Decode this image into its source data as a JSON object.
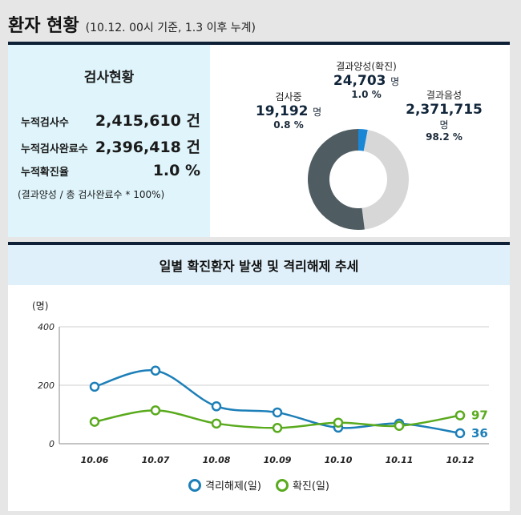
{
  "header": {
    "title": "환자 현황",
    "subtitle": "(10.12. 00시 기준, 1.3 이후 누계)"
  },
  "test_status": {
    "title": "검사현황",
    "rows": [
      {
        "label": "누적검사수",
        "value": "2,415,610 건"
      },
      {
        "label": "누적검사완료수",
        "value": "2,396,418 건"
      },
      {
        "label": "누적확진율",
        "value": "1.0 %"
      }
    ],
    "note": "(결과양성 / 총 검사완료수 * 100%)"
  },
  "donut": {
    "positive": {
      "name": "결과양성(확진)",
      "value": "24,703",
      "unit": "명",
      "pct": "1.0 %",
      "fraction": 0.01,
      "color": "#1a86d6"
    },
    "negative": {
      "name": "결과음성",
      "value": "2,371,715",
      "unit": "명",
      "pct": "98.2 %",
      "fraction": 0.982,
      "color": "#d7d7d7"
    },
    "testing": {
      "name": "검사중",
      "value": "19,192",
      "unit": "명",
      "pct": "0.8 %",
      "fraction": 0.008,
      "color": "#4f5d63"
    }
  },
  "chart_data": {
    "type": "line",
    "title": "일별 확진환자 발생 및 격리해제 추세",
    "ylabel": "(명)",
    "ylim": [
      0,
      400
    ],
    "yticks": [
      "0",
      "200",
      "400"
    ],
    "categories": [
      "10.06",
      "10.07",
      "10.08",
      "10.09",
      "10.10",
      "10.11",
      "10.12"
    ],
    "series": [
      {
        "name": "격리해제(일)",
        "color": "#1d7fb8",
        "values": [
          195,
          250,
          128,
          107,
          55,
          69,
          36
        ],
        "end_label": "36"
      },
      {
        "name": "확진(일)",
        "color": "#5aaa1e",
        "values": [
          75,
          114,
          69,
          54,
          72,
          61,
          97
        ],
        "end_label": "97"
      }
    ]
  }
}
